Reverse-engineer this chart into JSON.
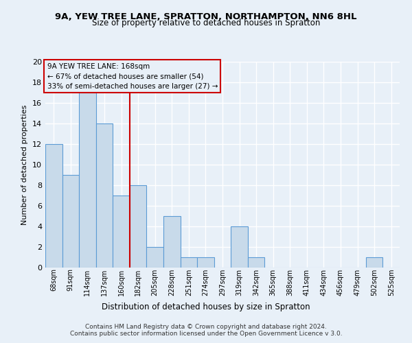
{
  "title": "9A, YEW TREE LANE, SPRATTON, NORTHAMPTON, NN6 8HL",
  "subtitle": "Size of property relative to detached houses in Spratton",
  "xlabel": "Distribution of detached houses by size in Spratton",
  "ylabel": "Number of detached properties",
  "categories": [
    "68sqm",
    "91sqm",
    "114sqm",
    "137sqm",
    "160sqm",
    "182sqm",
    "205sqm",
    "228sqm",
    "251sqm",
    "274sqm",
    "297sqm",
    "319sqm",
    "342sqm",
    "365sqm",
    "388sqm",
    "411sqm",
    "434sqm",
    "456sqm",
    "479sqm",
    "502sqm",
    "525sqm"
  ],
  "values": [
    12,
    9,
    17,
    14,
    7,
    8,
    2,
    5,
    1,
    1,
    0,
    4,
    1,
    0,
    0,
    0,
    0,
    0,
    0,
    1,
    0
  ],
  "ylim": [
    0,
    20
  ],
  "yticks": [
    0,
    2,
    4,
    6,
    8,
    10,
    12,
    14,
    16,
    18,
    20
  ],
  "bar_color": "#c8daea",
  "bar_edge_color": "#5b9bd5",
  "reference_line_x": 5.0,
  "reference_line_label": "9A YEW TREE LANE: 168sqm",
  "annotation_line1": "← 67% of detached houses are smaller (54)",
  "annotation_line2": "33% of semi-detached houses are larger (27) →",
  "annotation_box_edge": "#cc0000",
  "vline_color": "#cc0000",
  "bg_color": "#e8f0f8",
  "grid_color": "#ffffff",
  "footer1": "Contains HM Land Registry data © Crown copyright and database right 2024.",
  "footer2": "Contains public sector information licensed under the Open Government Licence v 3.0."
}
